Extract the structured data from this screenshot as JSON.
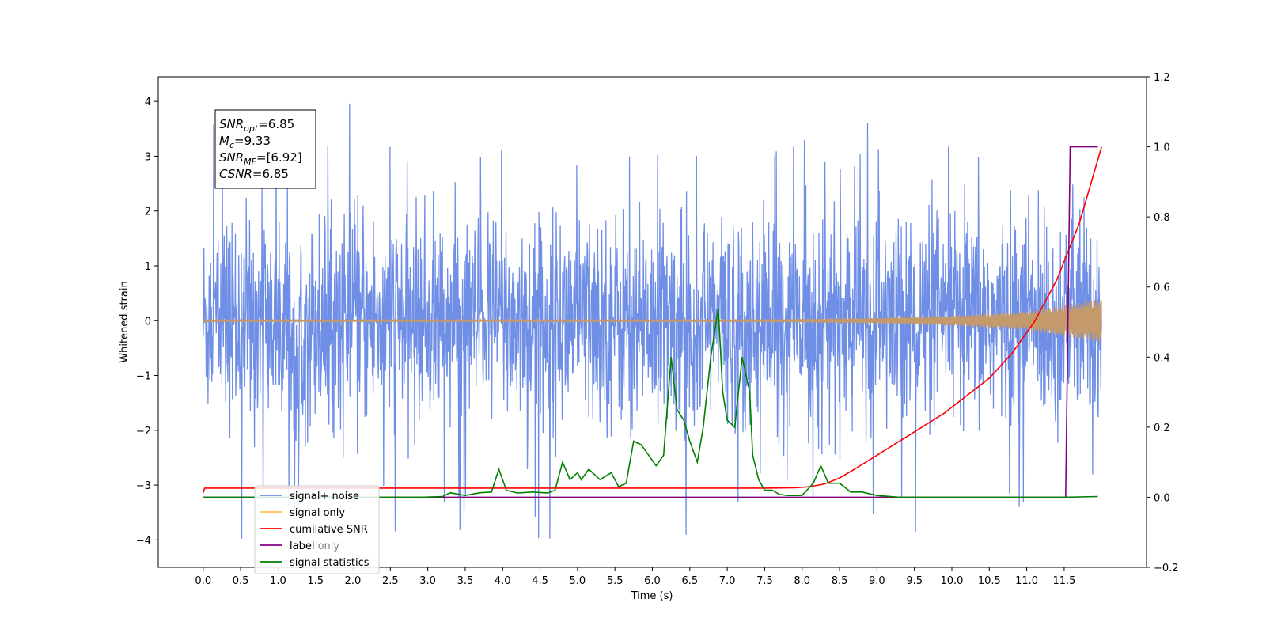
{
  "chart_data": {
    "type": "line",
    "xlabel": "Time (s)",
    "ylabel": "Whitened strain",
    "xlim": [
      -0.6,
      12.6
    ],
    "ylim": [
      -4.5,
      4.45
    ],
    "y2lim": [
      -0.2,
      1.2
    ],
    "xticks": [
      "0.0",
      "0.5",
      "1.0",
      "1.5",
      "2.0",
      "2.5",
      "3.0",
      "3.5",
      "4.0",
      "4.5",
      "5.0",
      "5.5",
      "6.0",
      "6.5",
      "7.0",
      "7.5",
      "8.0",
      "8.5",
      "9.0",
      "9.5",
      "10.0",
      "10.5",
      "11.0",
      "11.5"
    ],
    "xtick_values": [
      0,
      0.5,
      1,
      1.5,
      2,
      2.5,
      3,
      3.5,
      4,
      4.5,
      5,
      5.5,
      6,
      6.5,
      7,
      7.5,
      8,
      8.5,
      9,
      9.5,
      10,
      10.5,
      11,
      11.5
    ],
    "yticks": [
      "−4",
      "−3",
      "−2",
      "−1",
      "0",
      "1",
      "2",
      "3",
      "4"
    ],
    "ytick_values": [
      -4,
      -3,
      -2,
      -1,
      0,
      1,
      2,
      3,
      4
    ],
    "y2ticks": [
      "−0.2",
      "0.0",
      "0.2",
      "0.4",
      "0.6",
      "0.8",
      "1.0",
      "1.2"
    ],
    "y2tick_values": [
      -0.2,
      0,
      0.2,
      0.4,
      0.6,
      0.8,
      1.0,
      1.2
    ],
    "grid": false,
    "legend_position": "lower-left",
    "legend": [
      {
        "label": "signal+ noise",
        "color": "#6f8ee6"
      },
      {
        "label": "signal only",
        "color": "#ffc04d"
      },
      {
        "label": "cumilative SNR",
        "color": "#ff0000"
      },
      {
        "label": "label",
        "color": "#800080"
      },
      {
        "label": "signal statistics",
        "color": "#008000"
      }
    ],
    "hidden_legend_text": "label only",
    "annotation": [
      {
        "var": "SNR",
        "sub": "opt",
        "value": "=6.85"
      },
      {
        "var": "M",
        "sub": "c",
        "value": "=9.33"
      },
      {
        "var": "SNR",
        "sub": "MF",
        "value": "=[6.92]"
      },
      {
        "var": "CSNR",
        "sub": "",
        "value": "=6.85"
      }
    ],
    "series": [
      {
        "name": "signal+ noise",
        "axis": "left",
        "color": "#6f8ee6",
        "description_range": [
          0,
          12
        ],
        "typical_amplitude": 2.5,
        "max": 4.05,
        "min": -4.15
      },
      {
        "name": "signal only",
        "axis": "left",
        "color": "#c49a6c",
        "envelope": {
          "x": [
            0,
            7.0,
            8.0,
            9.0,
            10.0,
            11.0,
            12.0
          ],
          "amp": [
            0.02,
            0.02,
            0.03,
            0.05,
            0.09,
            0.17,
            0.4
          ]
        }
      },
      {
        "name": "cumilative SNR",
        "axis": "right",
        "color": "#ff0000",
        "x": [
          0,
          0.02,
          7.5,
          7.9,
          8.1,
          8.3,
          8.5,
          8.7,
          9.0,
          9.3,
          9.6,
          9.9,
          10.2,
          10.5,
          10.8,
          11.1,
          11.4,
          11.7,
          12.0
        ],
        "y": [
          0.013,
          0.026,
          0.026,
          0.027,
          0.03,
          0.038,
          0.055,
          0.08,
          0.12,
          0.16,
          0.2,
          0.24,
          0.29,
          0.34,
          0.41,
          0.5,
          0.62,
          0.78,
          1.0
        ]
      },
      {
        "name": "label",
        "axis": "right",
        "color": "#800080",
        "x": [
          0,
          11.52,
          11.58,
          11.95
        ],
        "y": [
          0,
          0,
          1,
          1
        ]
      },
      {
        "name": "signal statistics",
        "axis": "right",
        "color": "#008000",
        "x": [
          0,
          2.9,
          3.2,
          3.3,
          3.5,
          3.7,
          3.85,
          3.95,
          4.05,
          4.2,
          4.4,
          4.6,
          4.7,
          4.8,
          4.9,
          5.0,
          5.05,
          5.15,
          5.3,
          5.45,
          5.55,
          5.65,
          5.75,
          5.85,
          5.95,
          6.05,
          6.15,
          6.25,
          6.33,
          6.42,
          6.5,
          6.6,
          6.68,
          6.78,
          6.88,
          6.94,
          7.0,
          7.1,
          7.2,
          7.3,
          7.34,
          7.42,
          7.5,
          7.6,
          7.7,
          7.8,
          8.0,
          8.15,
          8.25,
          8.35,
          8.5,
          8.65,
          8.8,
          9.0,
          9.3,
          9.7,
          10.5,
          11.5,
          11.95
        ],
        "y": [
          0,
          0,
          0.002,
          0.013,
          0.005,
          0.013,
          0.015,
          0.08,
          0.02,
          0.012,
          0.015,
          0.012,
          0.02,
          0.1,
          0.05,
          0.07,
          0.05,
          0.08,
          0.05,
          0.07,
          0.03,
          0.04,
          0.16,
          0.15,
          0.12,
          0.09,
          0.12,
          0.4,
          0.25,
          0.22,
          0.16,
          0.1,
          0.2,
          0.4,
          0.54,
          0.3,
          0.22,
          0.2,
          0.4,
          0.3,
          0.12,
          0.05,
          0.02,
          0.02,
          0.008,
          0.005,
          0.005,
          0.04,
          0.09,
          0.04,
          0.04,
          0.015,
          0.015,
          0.005,
          0.0,
          0.0,
          0.0,
          0.0,
          0.002
        ]
      }
    ]
  }
}
